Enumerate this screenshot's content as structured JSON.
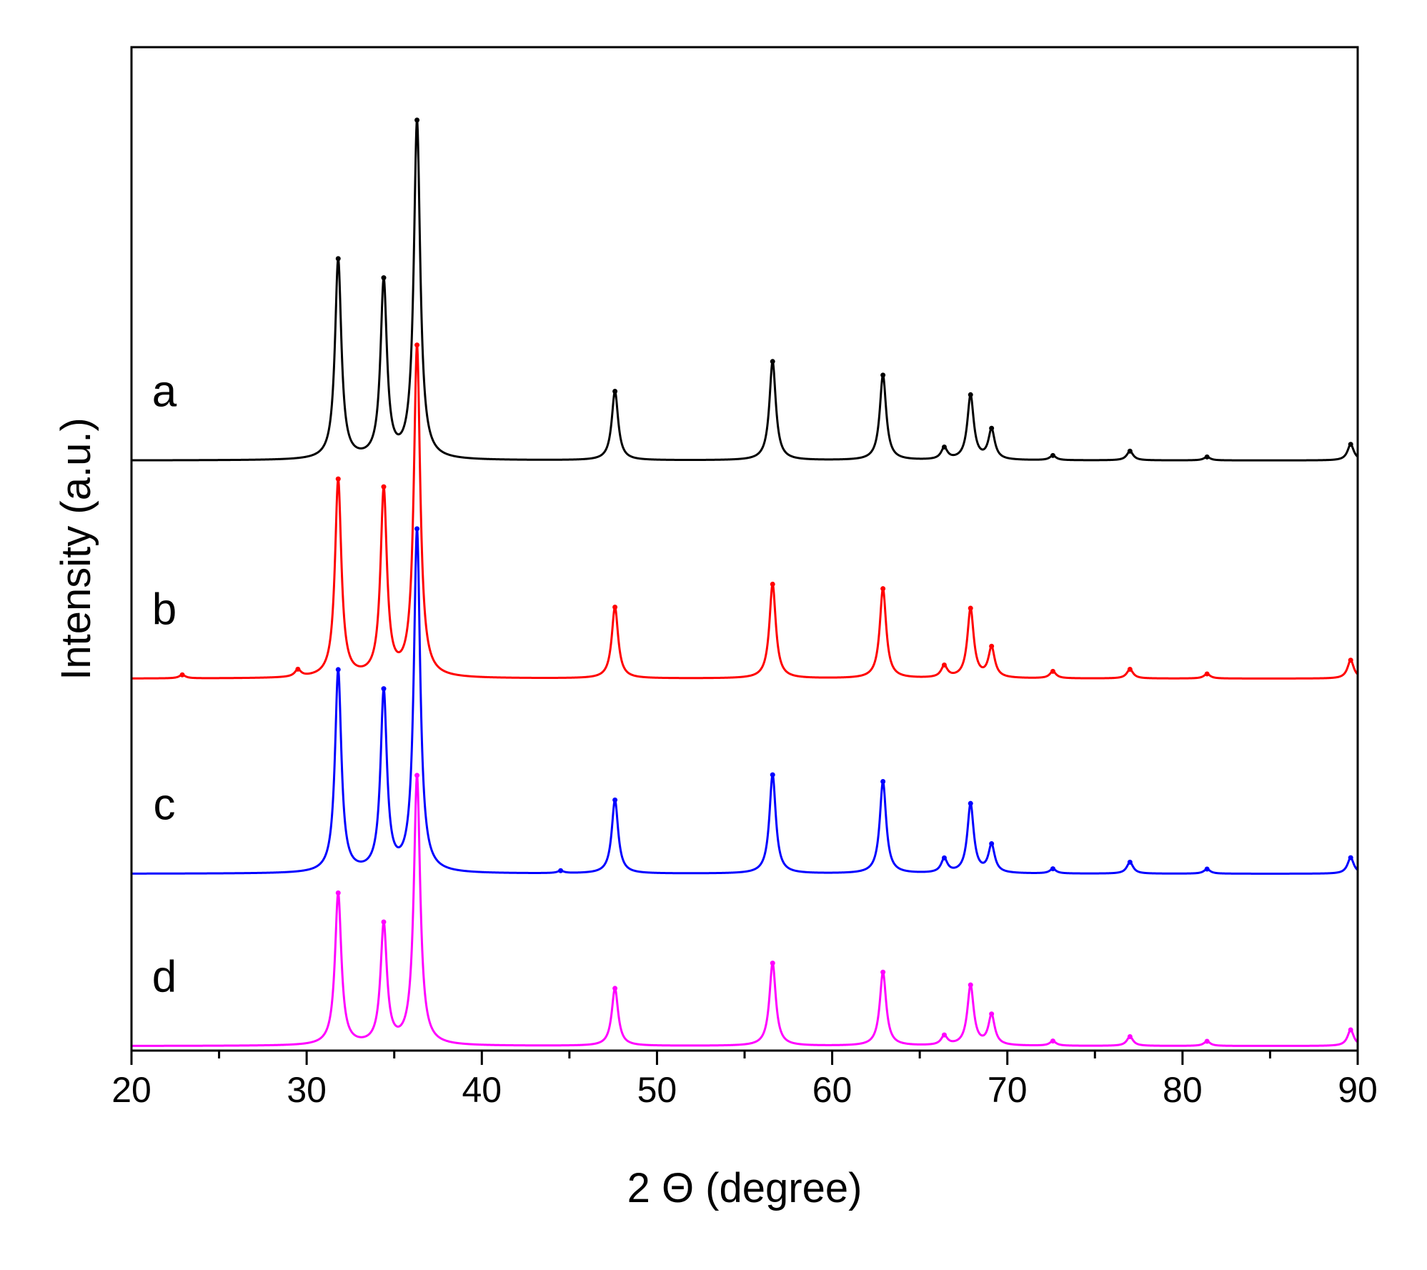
{
  "chart_data": {
    "type": "line",
    "title": "",
    "xlabel": "2 Θ (degree)",
    "ylabel": "Intensity (a.u.)",
    "xlim": [
      20,
      90
    ],
    "x_major_ticks": [
      20,
      30,
      40,
      50,
      60,
      70,
      80,
      90
    ],
    "x_tick_labels": [
      "20",
      "30",
      "40",
      "50",
      "60",
      "70",
      "80",
      "90"
    ],
    "y_ticks": "none",
    "grid": false,
    "legend": "none",
    "y_units": "intensity (a.u.), relative; each pattern offset vertically (stacked)",
    "peak_positions_2theta": [
      31.8,
      34.4,
      36.3,
      47.6,
      56.6,
      62.9,
      66.4,
      67.9,
      69.1,
      72.6,
      77.0,
      81.4,
      89.6
    ],
    "series": [
      {
        "name": "a",
        "color": "#000000",
        "baseline": 2.55,
        "peaks": [
          [
            31.8,
            0.87
          ],
          [
            34.4,
            0.77
          ],
          [
            36.3,
            1.47
          ],
          [
            47.6,
            0.3
          ],
          [
            56.6,
            0.43
          ],
          [
            62.9,
            0.37
          ],
          [
            66.4,
            0.05
          ],
          [
            67.9,
            0.28
          ],
          [
            69.1,
            0.13
          ],
          [
            72.6,
            0.02
          ],
          [
            77.0,
            0.04
          ],
          [
            81.4,
            0.015
          ],
          [
            89.6,
            0.07
          ]
        ]
      },
      {
        "name": "b",
        "color": "#ff0000",
        "baseline": 1.6,
        "peaks": [
          [
            22.9,
            0.015
          ],
          [
            29.5,
            0.03
          ],
          [
            31.8,
            0.86
          ],
          [
            34.4,
            0.81
          ],
          [
            36.3,
            1.44
          ],
          [
            47.6,
            0.31
          ],
          [
            56.6,
            0.41
          ],
          [
            62.9,
            0.39
          ],
          [
            66.4,
            0.05
          ],
          [
            67.9,
            0.3
          ],
          [
            69.1,
            0.13
          ],
          [
            72.6,
            0.03
          ],
          [
            77.0,
            0.04
          ],
          [
            81.4,
            0.02
          ],
          [
            89.6,
            0.08
          ]
        ]
      },
      {
        "name": "c",
        "color": "#0000ff",
        "baseline": 0.75,
        "peaks": [
          [
            31.8,
            0.88
          ],
          [
            34.4,
            0.78
          ],
          [
            36.3,
            1.49
          ],
          [
            44.5,
            0.01
          ],
          [
            47.6,
            0.32
          ],
          [
            56.6,
            0.43
          ],
          [
            62.9,
            0.4
          ],
          [
            66.4,
            0.06
          ],
          [
            67.9,
            0.3
          ],
          [
            69.1,
            0.12
          ],
          [
            72.6,
            0.02
          ],
          [
            77.0,
            0.05
          ],
          [
            81.4,
            0.02
          ],
          [
            89.6,
            0.07
          ]
        ]
      },
      {
        "name": "d",
        "color": "#ff00ff",
        "baseline": 0.0,
        "peaks": [
          [
            31.8,
            0.66
          ],
          [
            34.4,
            0.52
          ],
          [
            36.3,
            1.17
          ],
          [
            47.6,
            0.25
          ],
          [
            56.6,
            0.36
          ],
          [
            62.9,
            0.32
          ],
          [
            66.4,
            0.04
          ],
          [
            67.9,
            0.26
          ],
          [
            69.1,
            0.13
          ],
          [
            72.6,
            0.02
          ],
          [
            77.0,
            0.04
          ],
          [
            81.4,
            0.02
          ],
          [
            89.6,
            0.07
          ]
        ]
      }
    ],
    "ylim": [
      -0.02,
      4.35
    ]
  }
}
